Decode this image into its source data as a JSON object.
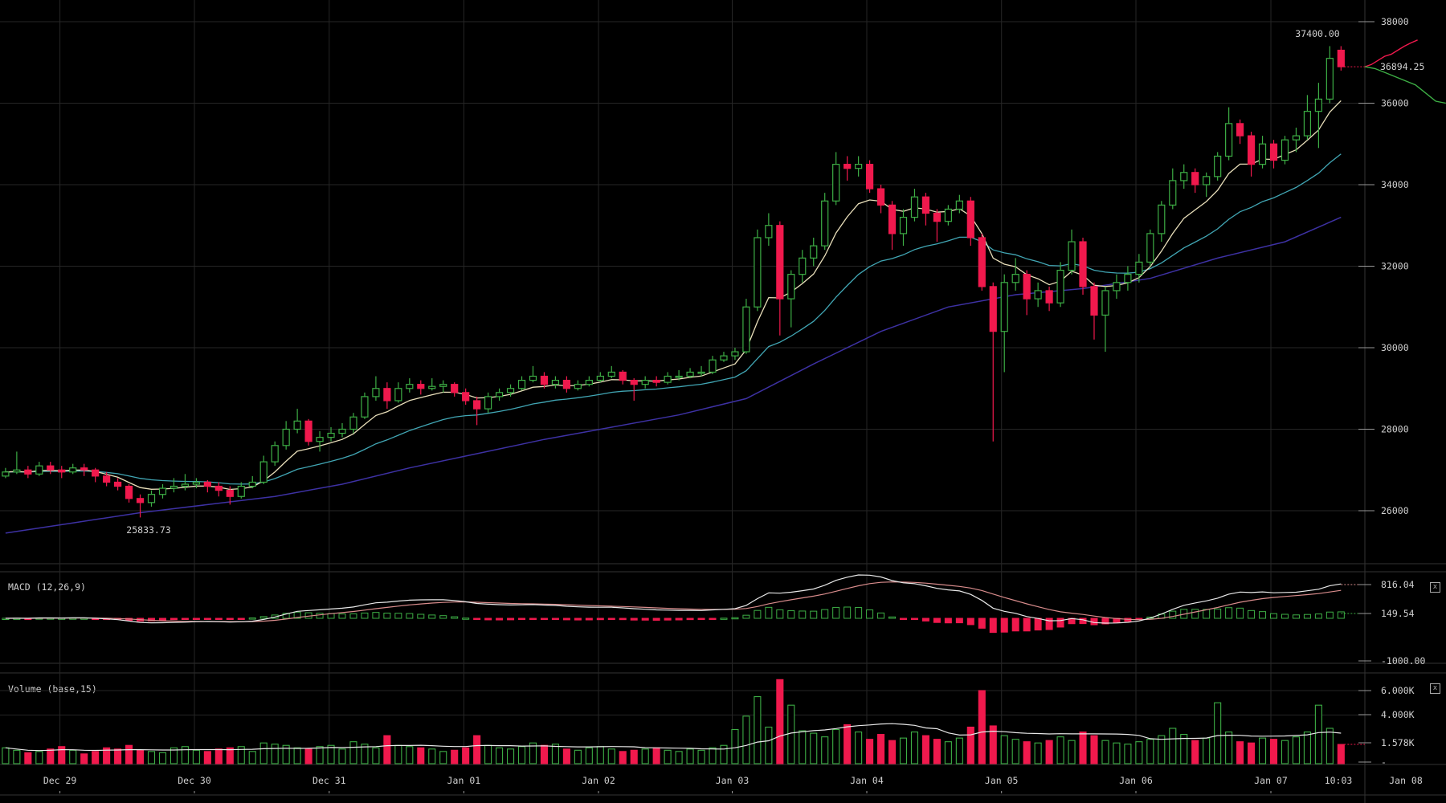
{
  "chart_data": {
    "type": "candlestick",
    "title": "",
    "interval_hours": 2,
    "price_axis": {
      "ticks": [
        "38000",
        "36000",
        "34000",
        "32000",
        "30000",
        "28000",
        "26000"
      ],
      "range": [
        25000,
        38500
      ]
    },
    "time_axis": {
      "ticks": [
        "Dec 29",
        "Dec 30",
        "Dec 31",
        "Jan 01",
        "Jan 02",
        "Jan 03",
        "Jan 04",
        "Jan 05",
        "Jan 06",
        "Jan 07"
      ],
      "current_time": "10:03",
      "next_tick": "Jan 08"
    },
    "grid": true,
    "annotations": {
      "high": "37400.00",
      "low": "25833.73",
      "last_price": "36894.25"
    },
    "colors": {
      "up": "#3dae45",
      "down": "#f0194d",
      "ma_fast": "#e9dfba",
      "ma_mid": "#41a6b4",
      "ma_slow": "#3d31a3",
      "grid": "#262626",
      "text": "#d0d0d0"
    },
    "candles": [
      [
        26850,
        27050,
        26800,
        26950
      ],
      [
        26950,
        27450,
        26900,
        27000
      ],
      [
        27000,
        27100,
        26800,
        26900
      ],
      [
        26900,
        27200,
        26850,
        27100
      ],
      [
        27100,
        27200,
        26900,
        27000
      ],
      [
        27000,
        27100,
        26800,
        26950
      ],
      [
        26950,
        27150,
        26900,
        27050
      ],
      [
        27050,
        27150,
        26850,
        27000
      ],
      [
        27000,
        27050,
        26700,
        26850
      ],
      [
        26850,
        26950,
        26600,
        26700
      ],
      [
        26700,
        26800,
        26500,
        26600
      ],
      [
        26600,
        26650,
        26200,
        26300
      ],
      [
        26300,
        26400,
        25834,
        26200
      ],
      [
        26200,
        26500,
        26100,
        26400
      ],
      [
        26400,
        26650,
        26300,
        26550
      ],
      [
        26550,
        26800,
        26450,
        26600
      ],
      [
        26600,
        26900,
        26500,
        26650
      ],
      [
        26650,
        26800,
        26550,
        26700
      ],
      [
        26700,
        26750,
        26450,
        26600
      ],
      [
        26600,
        26700,
        26350,
        26500
      ],
      [
        26500,
        26600,
        26150,
        26350
      ],
      [
        26350,
        26700,
        26300,
        26600
      ],
      [
        26600,
        26850,
        26550,
        26700
      ],
      [
        26700,
        27350,
        26650,
        27200
      ],
      [
        27200,
        27700,
        27100,
        27600
      ],
      [
        27600,
        28200,
        27500,
        28000
      ],
      [
        28000,
        28500,
        27900,
        28200
      ],
      [
        28200,
        28250,
        27600,
        27700
      ],
      [
        27700,
        27950,
        27450,
        27800
      ],
      [
        27800,
        28050,
        27700,
        27900
      ],
      [
        27900,
        28150,
        27800,
        28000
      ],
      [
        28000,
        28400,
        27900,
        28300
      ],
      [
        28300,
        28900,
        28250,
        28800
      ],
      [
        28800,
        29300,
        28700,
        29000
      ],
      [
        29000,
        29150,
        28500,
        28700
      ],
      [
        28700,
        29150,
        28650,
        29000
      ],
      [
        29000,
        29250,
        28900,
        29100
      ],
      [
        29100,
        29200,
        28850,
        29000
      ],
      [
        29000,
        29250,
        28950,
        29050
      ],
      [
        29050,
        29200,
        28900,
        29100
      ],
      [
        29100,
        29150,
        28800,
        28900
      ],
      [
        28900,
        29000,
        28600,
        28700
      ],
      [
        28700,
        28800,
        28100,
        28500
      ],
      [
        28500,
        28900,
        28400,
        28800
      ],
      [
        28800,
        29000,
        28700,
        28900
      ],
      [
        28900,
        29100,
        28800,
        29000
      ],
      [
        29000,
        29300,
        28950,
        29200
      ],
      [
        29200,
        29550,
        29150,
        29300
      ],
      [
        29300,
        29400,
        29000,
        29100
      ],
      [
        29100,
        29300,
        29000,
        29200
      ],
      [
        29200,
        29300,
        28900,
        29000
      ],
      [
        29000,
        29200,
        28950,
        29100
      ],
      [
        29100,
        29300,
        29050,
        29200
      ],
      [
        29200,
        29400,
        29150,
        29300
      ],
      [
        29300,
        29550,
        29250,
        29400
      ],
      [
        29400,
        29450,
        29100,
        29200
      ],
      [
        29200,
        29250,
        28700,
        29100
      ],
      [
        29100,
        29300,
        29000,
        29200
      ],
      [
        29200,
        29300,
        29050,
        29150
      ],
      [
        29150,
        29400,
        29100,
        29300
      ],
      [
        29300,
        29450,
        29200,
        29300
      ],
      [
        29300,
        29500,
        29250,
        29400
      ],
      [
        29400,
        29550,
        29300,
        29400
      ],
      [
        29400,
        29800,
        29350,
        29700
      ],
      [
        29700,
        29900,
        29650,
        29800
      ],
      [
        29800,
        30000,
        29700,
        29900
      ],
      [
        29900,
        31200,
        29850,
        31000
      ],
      [
        31000,
        32900,
        30900,
        32700
      ],
      [
        32700,
        33300,
        32500,
        33000
      ],
      [
        33000,
        33100,
        30300,
        31200
      ],
      [
        31200,
        31900,
        30500,
        31800
      ],
      [
        31800,
        32400,
        31600,
        32200
      ],
      [
        32200,
        32700,
        32000,
        32500
      ],
      [
        32500,
        33800,
        32400,
        33600
      ],
      [
        33600,
        34800,
        33500,
        34500
      ],
      [
        34500,
        34700,
        34100,
        34400
      ],
      [
        34400,
        34700,
        34200,
        34500
      ],
      [
        34500,
        34600,
        33800,
        33900
      ],
      [
        33900,
        34000,
        33300,
        33500
      ],
      [
        33500,
        33600,
        32400,
        32800
      ],
      [
        32800,
        33400,
        32500,
        33200
      ],
      [
        33200,
        33900,
        33100,
        33700
      ],
      [
        33700,
        33800,
        33000,
        33300
      ],
      [
        33300,
        33400,
        32600,
        33100
      ],
      [
        33100,
        33500,
        33000,
        33400
      ],
      [
        33400,
        33750,
        33300,
        33600
      ],
      [
        33600,
        33700,
        32500,
        32700
      ],
      [
        32700,
        32800,
        31400,
        31500
      ],
      [
        31500,
        31600,
        27700,
        30400
      ],
      [
        30400,
        31800,
        29400,
        31600
      ],
      [
        31600,
        32200,
        31400,
        31800
      ],
      [
        31800,
        31900,
        30800,
        31200
      ],
      [
        31200,
        31600,
        31000,
        31400
      ],
      [
        31400,
        31500,
        30900,
        31100
      ],
      [
        31100,
        32100,
        31000,
        31900
      ],
      [
        31900,
        32900,
        31800,
        32600
      ],
      [
        32600,
        32700,
        31300,
        31500
      ],
      [
        31500,
        31600,
        30200,
        30800
      ],
      [
        30800,
        31500,
        29900,
        31400
      ],
      [
        31400,
        31800,
        31200,
        31600
      ],
      [
        31600,
        32000,
        31400,
        31800
      ],
      [
        31800,
        32300,
        31600,
        32100
      ],
      [
        32100,
        32900,
        32000,
        32800
      ],
      [
        32800,
        33600,
        32600,
        33500
      ],
      [
        33500,
        34400,
        33400,
        34100
      ],
      [
        34100,
        34500,
        33900,
        34300
      ],
      [
        34300,
        34400,
        33800,
        34000
      ],
      [
        34000,
        34300,
        33700,
        34200
      ],
      [
        34200,
        34800,
        34100,
        34700
      ],
      [
        34700,
        35900,
        34600,
        35500
      ],
      [
        35500,
        35600,
        35000,
        35200
      ],
      [
        35200,
        35300,
        34200,
        34500
      ],
      [
        34500,
        35200,
        34400,
        35000
      ],
      [
        35000,
        35100,
        34400,
        34600
      ],
      [
        34600,
        35200,
        34500,
        35100
      ],
      [
        35100,
        35400,
        34800,
        35200
      ],
      [
        35200,
        36200,
        35100,
        35800
      ],
      [
        35800,
        36500,
        34900,
        36100
      ],
      [
        36100,
        37400,
        36000,
        37100
      ],
      [
        37300,
        37400,
        36800,
        36894.25
      ]
    ],
    "ma_slow_every_6_candles": [
      25450,
      25700,
      25950,
      26150,
      26350,
      26650,
      27050,
      27400,
      27750,
      28050,
      28350,
      28750,
      29600,
      30400,
      31000,
      31300,
      31450,
      31700,
      32200,
      32600,
      33200
    ],
    "depth_asks": [
      36894,
      36950,
      37050,
      37150,
      37200,
      37300,
      37400,
      37480,
      37550
    ],
    "depth_bids": [
      36894,
      36850,
      36750,
      36650,
      36550,
      36450,
      36250,
      36050,
      36000
    ],
    "macd": {
      "label": "MACD (12,26,9)",
      "ticks": [
        "816.04",
        "149.54",
        "-1000.00"
      ]
    },
    "volume": {
      "label": "Volume (base,15)",
      "ticks": [
        "6.000K",
        "4.000K",
        "1.578K",
        "-"
      ],
      "values": [
        1300,
        1100,
        900,
        1000,
        1200,
        1400,
        1100,
        800,
        1000,
        1300,
        1200,
        1500,
        1100,
        1000,
        900,
        1300,
        1400,
        1100,
        1000,
        1200,
        1300,
        1400,
        1000,
        1700,
        1600,
        1500,
        1300,
        1200,
        1400,
        1500,
        1200,
        1800,
        1600,
        1300,
        2300,
        1500,
        1400,
        1300,
        1200,
        1000,
        1100,
        1300,
        2300,
        1500,
        1300,
        1200,
        1400,
        1700,
        1500,
        1600,
        1200,
        1100,
        1300,
        1400,
        1200,
        1000,
        1100,
        1200,
        1300,
        1100,
        1000,
        1200,
        1100,
        1300,
        1500,
        2800,
        3900,
        5500,
        3000,
        6900,
        4800,
        2700,
        2500,
        2200,
        2800,
        3200,
        2600,
        2000,
        2400,
        1900,
        2100,
        2600,
        2300,
        2000,
        1800,
        2100,
        3000,
        6000,
        3100,
        2300,
        2000,
        1800,
        1700,
        1900,
        2200,
        1900,
        2600,
        2300,
        1900,
        1700,
        1600,
        1800,
        2000,
        2300,
        2900,
        2400,
        1900,
        2100,
        5000,
        2600,
        1800,
        1700,
        2100,
        2000,
        1900,
        2200,
        2600,
        4800,
        2900,
        1578
      ]
    }
  },
  "controls": {
    "close_icon": "x"
  }
}
